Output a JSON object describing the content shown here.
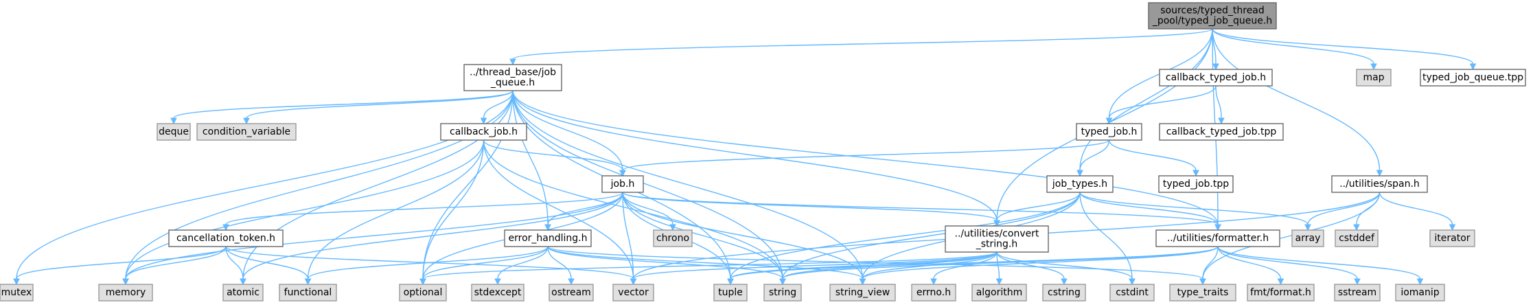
{
  "colors": {
    "root_fill": "#999999",
    "root_stroke": "#666666",
    "file_fill": "#ffffff",
    "file_stroke": "#666666",
    "system_fill": "#e0e0e0",
    "system_stroke": "#999999",
    "edge": "#63b8ff"
  },
  "nodes": [
    {
      "id": "root",
      "lines": [
        "sources/typed_thread",
        "_pool/typed_job_queue.h"
      ],
      "kind": "root"
    },
    {
      "id": "thread_base_job_queue",
      "lines": [
        "../thread_base/job",
        "_queue.h"
      ],
      "kind": "file"
    },
    {
      "id": "callback_typed_job_h",
      "lines": [
        "callback_typed_job.h"
      ],
      "kind": "file"
    },
    {
      "id": "map",
      "lines": [
        "map"
      ],
      "kind": "system"
    },
    {
      "id": "typed_job_queue_tpp",
      "lines": [
        "typed_job_queue.tpp"
      ],
      "kind": "file"
    },
    {
      "id": "deque",
      "lines": [
        "deque"
      ],
      "kind": "system"
    },
    {
      "id": "condition_variable",
      "lines": [
        "condition_variable"
      ],
      "kind": "system"
    },
    {
      "id": "callback_job_h",
      "lines": [
        "callback_job.h"
      ],
      "kind": "file"
    },
    {
      "id": "typed_job_h",
      "lines": [
        "typed_job.h"
      ],
      "kind": "file"
    },
    {
      "id": "callback_typed_job_tpp",
      "lines": [
        "callback_typed_job.tpp"
      ],
      "kind": "file"
    },
    {
      "id": "job_h",
      "lines": [
        "job.h"
      ],
      "kind": "file"
    },
    {
      "id": "job_types_h",
      "lines": [
        "job_types.h"
      ],
      "kind": "file"
    },
    {
      "id": "typed_job_tpp",
      "lines": [
        "typed_job.tpp"
      ],
      "kind": "file"
    },
    {
      "id": "span_h",
      "lines": [
        "../utilities/span.h"
      ],
      "kind": "file"
    },
    {
      "id": "cancellation_token_h",
      "lines": [
        "cancellation_token.h"
      ],
      "kind": "file"
    },
    {
      "id": "error_handling_h",
      "lines": [
        "error_handling.h"
      ],
      "kind": "file"
    },
    {
      "id": "chrono",
      "lines": [
        "chrono"
      ],
      "kind": "system"
    },
    {
      "id": "convert_string_h",
      "lines": [
        "../utilities/convert",
        "_string.h"
      ],
      "kind": "file"
    },
    {
      "id": "formatter_h",
      "lines": [
        "../utilities/formatter.h"
      ],
      "kind": "file"
    },
    {
      "id": "array",
      "lines": [
        "array"
      ],
      "kind": "system"
    },
    {
      "id": "cstddef",
      "lines": [
        "cstddef"
      ],
      "kind": "system"
    },
    {
      "id": "iterator",
      "lines": [
        "iterator"
      ],
      "kind": "system"
    },
    {
      "id": "mutex",
      "lines": [
        "mutex"
      ],
      "kind": "system"
    },
    {
      "id": "memory",
      "lines": [
        "memory"
      ],
      "kind": "system"
    },
    {
      "id": "atomic",
      "lines": [
        "atomic"
      ],
      "kind": "system"
    },
    {
      "id": "functional",
      "lines": [
        "functional"
      ],
      "kind": "system"
    },
    {
      "id": "optional",
      "lines": [
        "optional"
      ],
      "kind": "system"
    },
    {
      "id": "stdexcept",
      "lines": [
        "stdexcept"
      ],
      "kind": "system"
    },
    {
      "id": "ostream",
      "lines": [
        "ostream"
      ],
      "kind": "system"
    },
    {
      "id": "vector",
      "lines": [
        "vector"
      ],
      "kind": "system"
    },
    {
      "id": "tuple",
      "lines": [
        "tuple"
      ],
      "kind": "system"
    },
    {
      "id": "string",
      "lines": [
        "string"
      ],
      "kind": "system"
    },
    {
      "id": "string_view",
      "lines": [
        "string_view"
      ],
      "kind": "system"
    },
    {
      "id": "errno_h",
      "lines": [
        "errno.h"
      ],
      "kind": "system"
    },
    {
      "id": "algorithm",
      "lines": [
        "algorithm"
      ],
      "kind": "system"
    },
    {
      "id": "cstring",
      "lines": [
        "cstring"
      ],
      "kind": "system"
    },
    {
      "id": "cstdint",
      "lines": [
        "cstdint"
      ],
      "kind": "system"
    },
    {
      "id": "type_traits",
      "lines": [
        "type_traits"
      ],
      "kind": "system"
    },
    {
      "id": "fmt_format_h",
      "lines": [
        "fmt/format.h"
      ],
      "kind": "system"
    },
    {
      "id": "sstream",
      "lines": [
        "sstream"
      ],
      "kind": "system"
    },
    {
      "id": "iomanip",
      "lines": [
        "iomanip"
      ],
      "kind": "system"
    }
  ],
  "edges": [
    [
      "root",
      "thread_base_job_queue"
    ],
    [
      "root",
      "callback_typed_job_h"
    ],
    [
      "root",
      "map"
    ],
    [
      "root",
      "typed_job_queue_tpp"
    ],
    [
      "root",
      "typed_job_h"
    ],
    [
      "root",
      "job_types_h"
    ],
    [
      "root",
      "span_h"
    ],
    [
      "root",
      "convert_string_h"
    ],
    [
      "root",
      "formatter_h"
    ],
    [
      "thread_base_job_queue",
      "deque"
    ],
    [
      "thread_base_job_queue",
      "condition_variable"
    ],
    [
      "thread_base_job_queue",
      "callback_job_h"
    ],
    [
      "thread_base_job_queue",
      "job_h"
    ],
    [
      "thread_base_job_queue",
      "error_handling_h"
    ],
    [
      "thread_base_job_queue",
      "convert_string_h"
    ],
    [
      "thread_base_job_queue",
      "formatter_h"
    ],
    [
      "thread_base_job_queue",
      "mutex"
    ],
    [
      "thread_base_job_queue",
      "memory"
    ],
    [
      "thread_base_job_queue",
      "atomic"
    ],
    [
      "thread_base_job_queue",
      "optional"
    ],
    [
      "thread_base_job_queue",
      "tuple"
    ],
    [
      "thread_base_job_queue",
      "string"
    ],
    [
      "thread_base_job_queue",
      "string_view"
    ],
    [
      "callback_typed_job_h",
      "typed_job_h"
    ],
    [
      "callback_typed_job_h",
      "callback_typed_job_tpp"
    ],
    [
      "callback_job_h",
      "job_h"
    ],
    [
      "callback_job_h",
      "memory"
    ],
    [
      "callback_job_h",
      "functional"
    ],
    [
      "callback_job_h",
      "optional"
    ],
    [
      "callback_job_h",
      "vector"
    ],
    [
      "callback_job_h",
      "string"
    ],
    [
      "typed_job_h",
      "job_h"
    ],
    [
      "typed_job_h",
      "job_types_h"
    ],
    [
      "typed_job_h",
      "typed_job_tpp"
    ],
    [
      "job_h",
      "cancellation_token_h"
    ],
    [
      "job_h",
      "error_handling_h"
    ],
    [
      "job_h",
      "chrono"
    ],
    [
      "job_h",
      "convert_string_h"
    ],
    [
      "job_h",
      "formatter_h"
    ],
    [
      "job_h",
      "memory"
    ],
    [
      "job_h",
      "atomic"
    ],
    [
      "job_h",
      "optional"
    ],
    [
      "job_h",
      "vector"
    ],
    [
      "job_h",
      "tuple"
    ],
    [
      "job_h",
      "string"
    ],
    [
      "job_h",
      "string_view"
    ],
    [
      "job_types_h",
      "convert_string_h"
    ],
    [
      "job_types_h",
      "formatter_h"
    ],
    [
      "job_types_h",
      "array"
    ],
    [
      "job_types_h",
      "cstdint"
    ],
    [
      "job_types_h",
      "string"
    ],
    [
      "job_types_h",
      "string_view"
    ],
    [
      "job_types_h",
      "tuple"
    ],
    [
      "span_h",
      "array"
    ],
    [
      "span_h",
      "cstddef"
    ],
    [
      "span_h",
      "iterator"
    ],
    [
      "span_h",
      "type_traits"
    ],
    [
      "span_h",
      "vector"
    ],
    [
      "cancellation_token_h",
      "mutex"
    ],
    [
      "cancellation_token_h",
      "memory"
    ],
    [
      "cancellation_token_h",
      "atomic"
    ],
    [
      "cancellation_token_h",
      "functional"
    ],
    [
      "cancellation_token_h",
      "vector"
    ],
    [
      "error_handling_h",
      "optional"
    ],
    [
      "error_handling_h",
      "stdexcept"
    ],
    [
      "error_handling_h",
      "ostream"
    ],
    [
      "error_handling_h",
      "string"
    ],
    [
      "error_handling_h",
      "string_view"
    ],
    [
      "error_handling_h",
      "functional"
    ],
    [
      "error_handling_h",
      "type_traits"
    ],
    [
      "convert_string_h",
      "optional"
    ],
    [
      "convert_string_h",
      "vector"
    ],
    [
      "convert_string_h",
      "tuple"
    ],
    [
      "convert_string_h",
      "string"
    ],
    [
      "convert_string_h",
      "string_view"
    ],
    [
      "convert_string_h",
      "errno_h"
    ],
    [
      "convert_string_h",
      "algorithm"
    ],
    [
      "convert_string_h",
      "cstring"
    ],
    [
      "convert_string_h",
      "cstdint"
    ],
    [
      "formatter_h",
      "type_traits"
    ],
    [
      "formatter_h",
      "fmt_format_h"
    ],
    [
      "formatter_h",
      "sstream"
    ],
    [
      "formatter_h",
      "iomanip"
    ],
    [
      "formatter_h",
      "string"
    ],
    [
      "formatter_h",
      "string_view"
    ],
    [
      "formatter_h",
      "tuple"
    ]
  ]
}
